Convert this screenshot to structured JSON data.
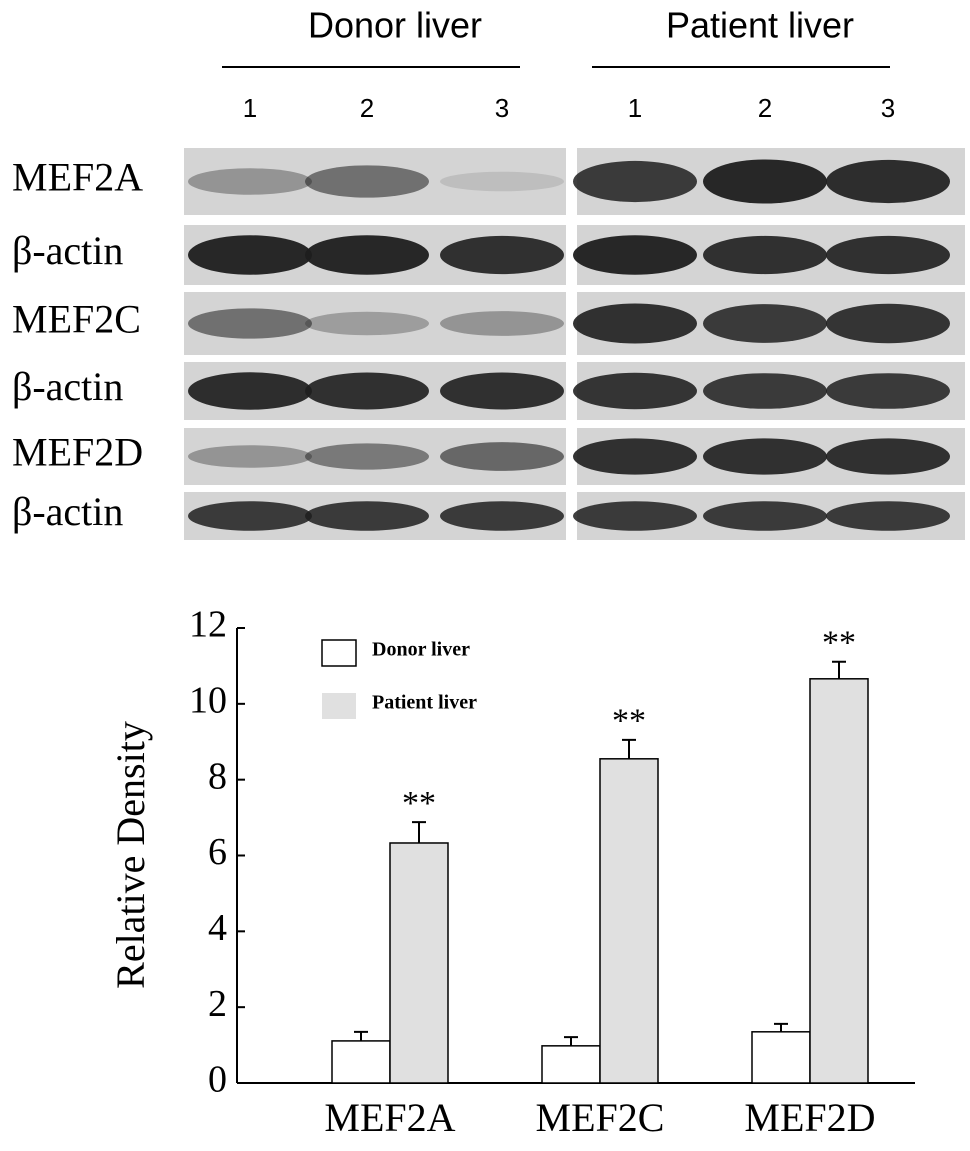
{
  "blot": {
    "groups": [
      {
        "label": "Donor liver",
        "lanes": [
          "1",
          "2",
          "3"
        ]
      },
      {
        "label": "Patient liver",
        "lanes": [
          "1",
          "2",
          "3"
        ]
      }
    ],
    "rows": [
      "MEF2A",
      "β-actin",
      "MEF2C",
      "β-actin",
      "MEF2D",
      "β-actin"
    ]
  },
  "chart_data": {
    "type": "bar",
    "y_label": "Relative Density",
    "categories": [
      "MEF2A",
      "MEF2C",
      "MEF2D"
    ],
    "series": [
      {
        "name": "Donor liver",
        "color": "#ffffff",
        "values": [
          1.11,
          0.98,
          1.35
        ],
        "errors": [
          0.24,
          0.23,
          0.21
        ]
      },
      {
        "name": "Patient liver",
        "color": "#e0e0e0",
        "values": [
          6.33,
          8.55,
          10.66
        ],
        "errors": [
          0.55,
          0.5,
          0.45
        ]
      }
    ],
    "annotations": [
      "**",
      "**",
      "**"
    ],
    "ylim": [
      0,
      12
    ],
    "yticks": [
      0,
      2,
      4,
      6,
      8,
      10,
      12
    ],
    "legend": "upper left"
  }
}
